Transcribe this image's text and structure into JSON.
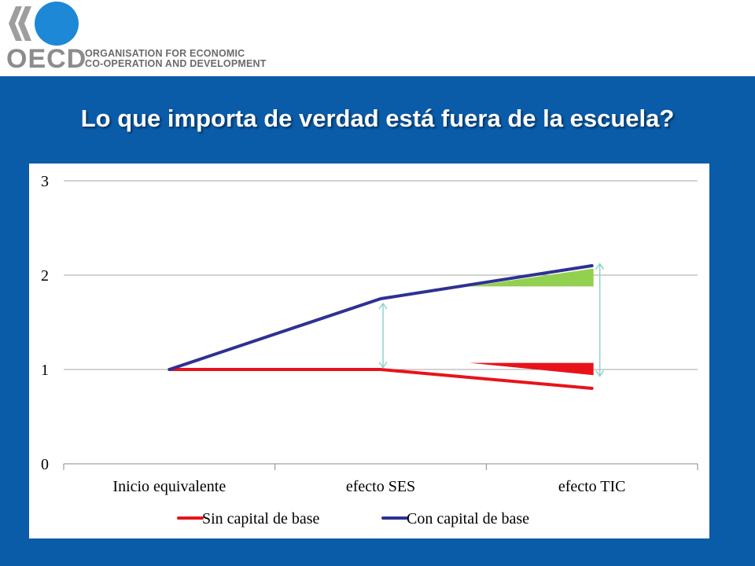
{
  "header": {
    "logo_text": "OECD",
    "org_line1": "ORGANISATION FOR ECONOMIC",
    "org_line2": "CO-OPERATION AND DEVELOPMENT"
  },
  "slide": {
    "title": "Lo que importa de verdad está fuera de la escuela?"
  },
  "colors": {
    "background": "#0a5ba8",
    "red_series": "#e8131a",
    "blue_series": "#2e3192",
    "green_wedge": "#92d050",
    "arrow": "#8fd3c9"
  },
  "chart_data": {
    "type": "line",
    "categories": [
      "Inicio equivalente",
      "efecto SES",
      "efecto TIC"
    ],
    "series": [
      {
        "name": "Sin capital de base",
        "values": [
          1.0,
          1.0,
          0.8
        ],
        "color": "#e8131a"
      },
      {
        "name": "Con capital de base",
        "values": [
          1.0,
          1.75,
          2.1
        ],
        "color": "#2e3192"
      }
    ],
    "ylim": [
      0,
      3
    ],
    "yticks": [
      "0",
      "1",
      "2",
      "3"
    ],
    "grid": true,
    "legend": "bottom"
  }
}
